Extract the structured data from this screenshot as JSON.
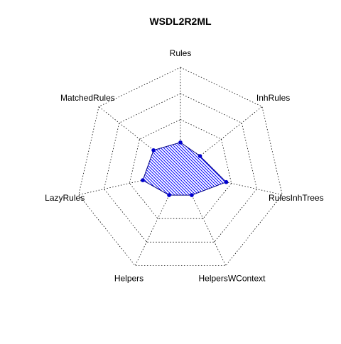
{
  "chart_data": {
    "type": "radar",
    "title": "WSDL2R2ML",
    "axes": [
      "Rules",
      "InhRules",
      "RulesInhTrees",
      "HelpersWContext",
      "Helpers",
      "LazyRules",
      "MatchedRules"
    ],
    "values": [
      0.28,
      0.24,
      0.45,
      0.25,
      0.25,
      0.37,
      0.33
    ],
    "rmax": 1.0,
    "grid_levels": 4,
    "grid_style": "dotted",
    "colors": {
      "fill": "#0000ff",
      "border": "#000080",
      "points": "#0000cd",
      "grid": "#000000",
      "text": "#000000"
    }
  }
}
